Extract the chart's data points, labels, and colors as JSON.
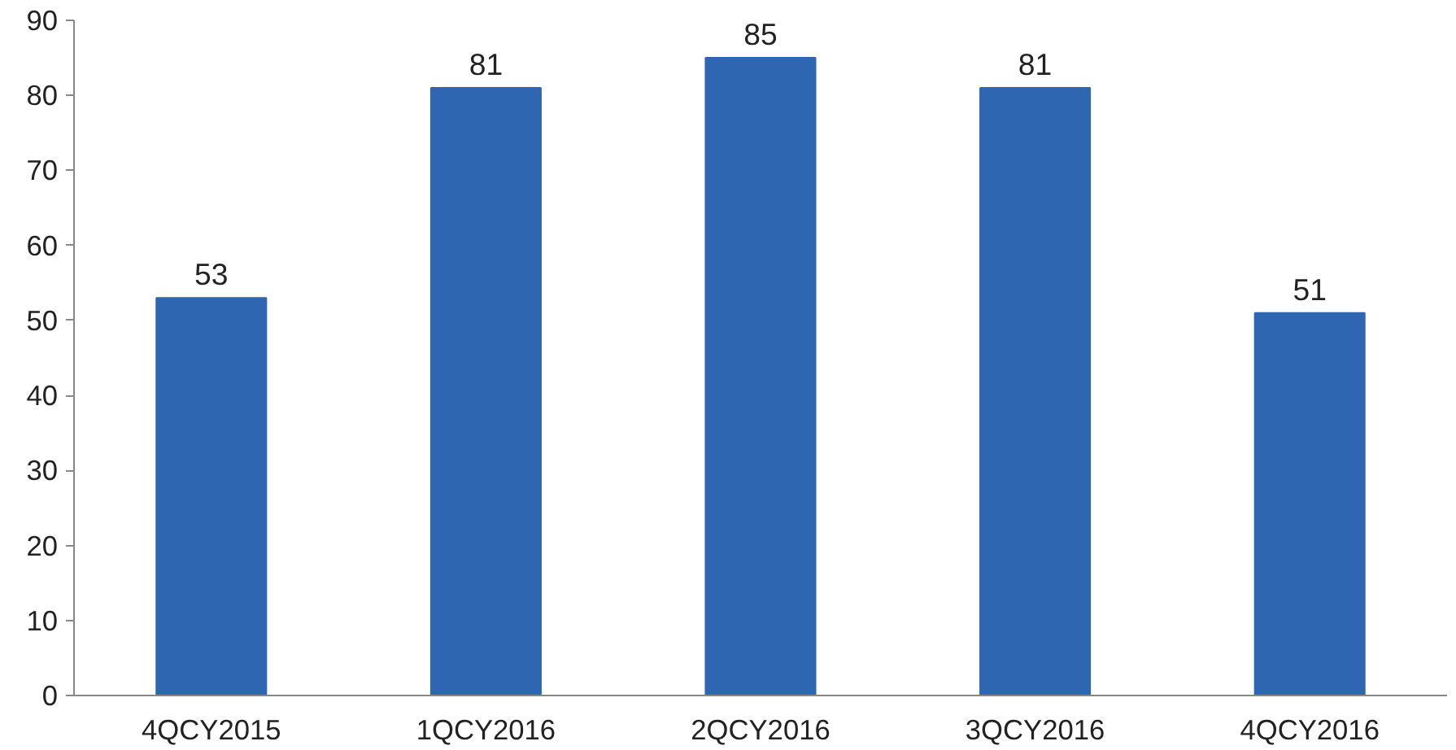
{
  "chart_data": {
    "type": "bar",
    "categories": [
      "4QCY2015",
      "1QCY2016",
      "2QCY2016",
      "3QCY2016",
      "4QCY2016"
    ],
    "values": [
      53,
      81,
      85,
      81,
      51
    ],
    "color": "#2e66b1",
    "ylim": [
      0,
      90
    ],
    "yticks": [
      0,
      10,
      20,
      30,
      40,
      50,
      60,
      70,
      80,
      90
    ],
    "data_labels": true
  }
}
